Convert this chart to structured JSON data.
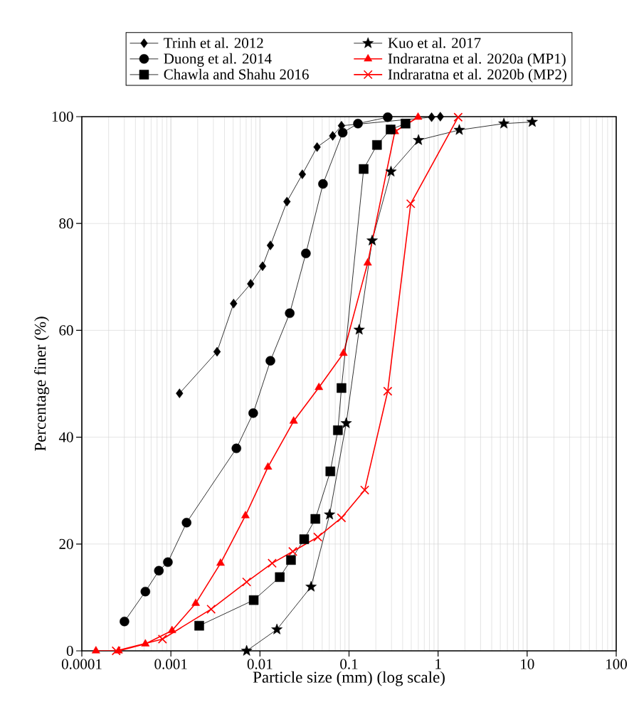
{
  "chart_data": {
    "type": "line",
    "xlabel": "Particle size (mm) (log scale)",
    "ylabel": "Percentage finer (%)",
    "log": "x",
    "xlim": [
      0.0001,
      100
    ],
    "ylim": [
      0,
      100
    ],
    "xticks": [
      0.0001,
      0.001,
      0.01,
      0.1,
      1,
      10,
      100
    ],
    "yticks": [
      0,
      20,
      40,
      60,
      80,
      100
    ],
    "grid": true,
    "legend": "top",
    "line_style": "solid",
    "series": [
      {
        "name": "Trinh et al. 2012",
        "color": "#000000",
        "marker": "diamond",
        "x": [
          0.00125,
          0.0033,
          0.00506,
          0.00787,
          0.0107,
          0.0131,
          0.0201,
          0.0299,
          0.0438,
          0.0656,
          0.0823,
          0.846,
          1.06
        ],
        "values": [
          48.2,
          56,
          65,
          68.7,
          72,
          75.9,
          84.1,
          89.2,
          94.3,
          96.4,
          98.3,
          99.9,
          100
        ]
      },
      {
        "name": "Kuo et al. 2017",
        "color": "#000000",
        "marker": "star",
        "x": [
          0.00709,
          0.0155,
          0.0375,
          0.0605,
          0.093,
          0.13,
          0.182,
          0.296,
          0.603,
          1.73,
          5.48,
          11.4
        ],
        "values": [
          0,
          4,
          12,
          25.5,
          42.6,
          60.1,
          76.8,
          89.7,
          95.6,
          97.5,
          98.7,
          99
        ]
      },
      {
        "name": "Duong et al. 2014",
        "color": "#000000",
        "marker": "circle",
        "x": [
          0.000301,
          0.000517,
          0.000733,
          0.000925,
          0.0015,
          0.00544,
          0.0084,
          0.0131,
          0.0216,
          0.0328,
          0.051,
          0.0849,
          0.126,
          0.272
        ],
        "values": [
          5.5,
          11.1,
          15,
          16.6,
          24,
          37.9,
          44.5,
          54.3,
          63.2,
          74.4,
          87.4,
          97,
          98.7,
          99.9
        ]
      },
      {
        "name": "Indraratna et al. 2020a (MP1)",
        "color": "#ff0000",
        "marker": "triangle",
        "x": [
          0.000144,
          0.000259,
          0.000517,
          0.00103,
          0.0019,
          0.00361,
          0.00687,
          0.0123,
          0.0239,
          0.0459,
          0.0865,
          0.162,
          0.327,
          0.596
        ],
        "values": [
          0,
          0,
          1.3,
          3.8,
          8.9,
          16.4,
          25.3,
          34.4,
          43,
          49.3,
          55.7,
          72.6,
          97.2,
          99.9
        ]
      },
      {
        "name": "Chawla and Shahu 2016",
        "color": "#000000",
        "marker": "square",
        "x": [
          0.00208,
          0.00851,
          0.0167,
          0.0223,
          0.0314,
          0.0419,
          0.0617,
          0.075,
          0.0823,
          0.146,
          0.206,
          0.293,
          0.431
        ],
        "values": [
          4.7,
          9.5,
          13.8,
          17,
          20.9,
          24.7,
          33.6,
          41.3,
          49.2,
          90.2,
          94.7,
          97.6,
          98.7
        ]
      },
      {
        "name": "Indraratna et al. 2020b (MP2)",
        "color": "#ff0000",
        "marker": "cross",
        "x": [
          0.000243,
          0.000804,
          0.00283,
          0.00709,
          0.0137,
          0.0234,
          0.0446,
          0.0823,
          0.15,
          0.272,
          0.493,
          1.68
        ],
        "values": [
          0,
          2.2,
          7.8,
          12.9,
          16.4,
          18.6,
          21.3,
          24.9,
          30.1,
          48.6,
          83.7,
          99.9
        ]
      }
    ]
  }
}
